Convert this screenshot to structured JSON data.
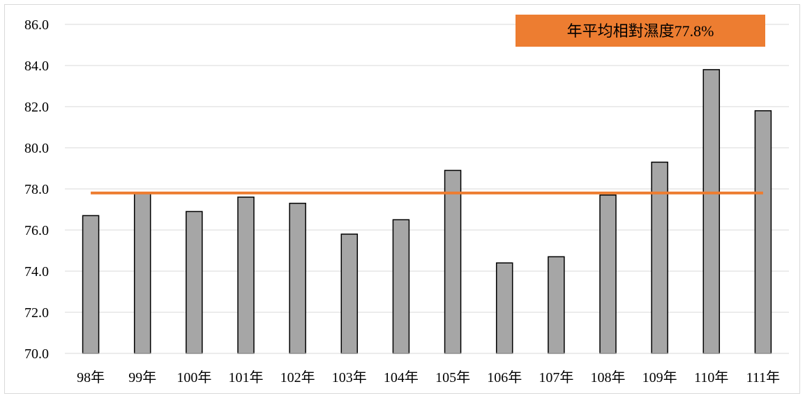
{
  "chart_data": {
    "type": "bar",
    "categories": [
      "98年",
      "99年",
      "100年",
      "101年",
      "102年",
      "103年",
      "104年",
      "105年",
      "106年",
      "107年",
      "108年",
      "109年",
      "110年",
      "111年"
    ],
    "values": [
      76.7,
      77.8,
      76.9,
      77.6,
      77.3,
      75.8,
      76.5,
      78.9,
      74.4,
      74.7,
      77.7,
      79.3,
      83.8,
      81.8
    ],
    "ylim": [
      70.0,
      86.0
    ],
    "yticks": [
      "70.0",
      "72.0",
      "74.0",
      "76.0",
      "78.0",
      "80.0",
      "82.0",
      "84.0",
      "86.0"
    ],
    "grid": true,
    "bar_color": "#a6a6a6",
    "bar_edge_color": "#000000",
    "reference_line": {
      "value": 77.8,
      "color": "#ed7d31"
    },
    "annotation": {
      "text": "年平均相對濕度77.8%",
      "background": "#ed7d31"
    },
    "legend": "none"
  }
}
